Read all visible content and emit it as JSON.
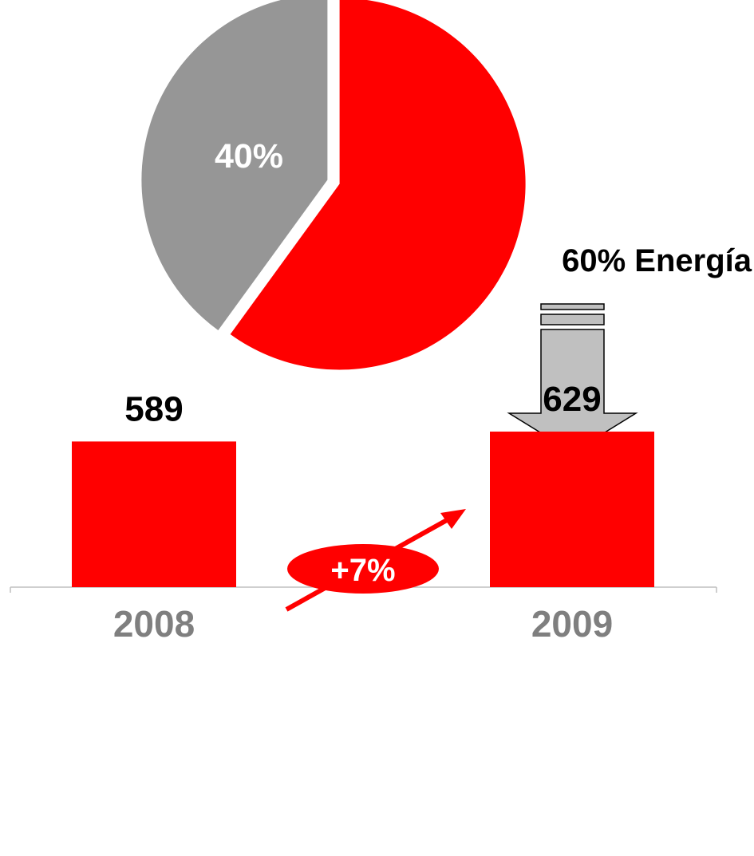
{
  "chart_data": [
    {
      "type": "pie",
      "slices": [
        {
          "label": "Energía",
          "value": 60,
          "display": "60% Energía",
          "color": "#FF0000"
        },
        {
          "label": "",
          "value": 40,
          "display": "40%",
          "color": "#969696"
        }
      ]
    },
    {
      "type": "bar",
      "categories": [
        "2008",
        "2009"
      ],
      "values": [
        589,
        629
      ],
      "value_labels": [
        "589",
        "629"
      ],
      "color": "#FF0000",
      "growth_label": "+7%",
      "grid": false
    }
  ],
  "colors": {
    "accent": "#FF0000",
    "pie_secondary": "#969696",
    "arrow_fill": "#C0C0C0",
    "axis": "#BFBFBF",
    "category_label": "#7F7F7F"
  },
  "icons": {
    "down_arrow": "down-arrow-icon",
    "growth_arrow": "growth-arrow-icon"
  }
}
